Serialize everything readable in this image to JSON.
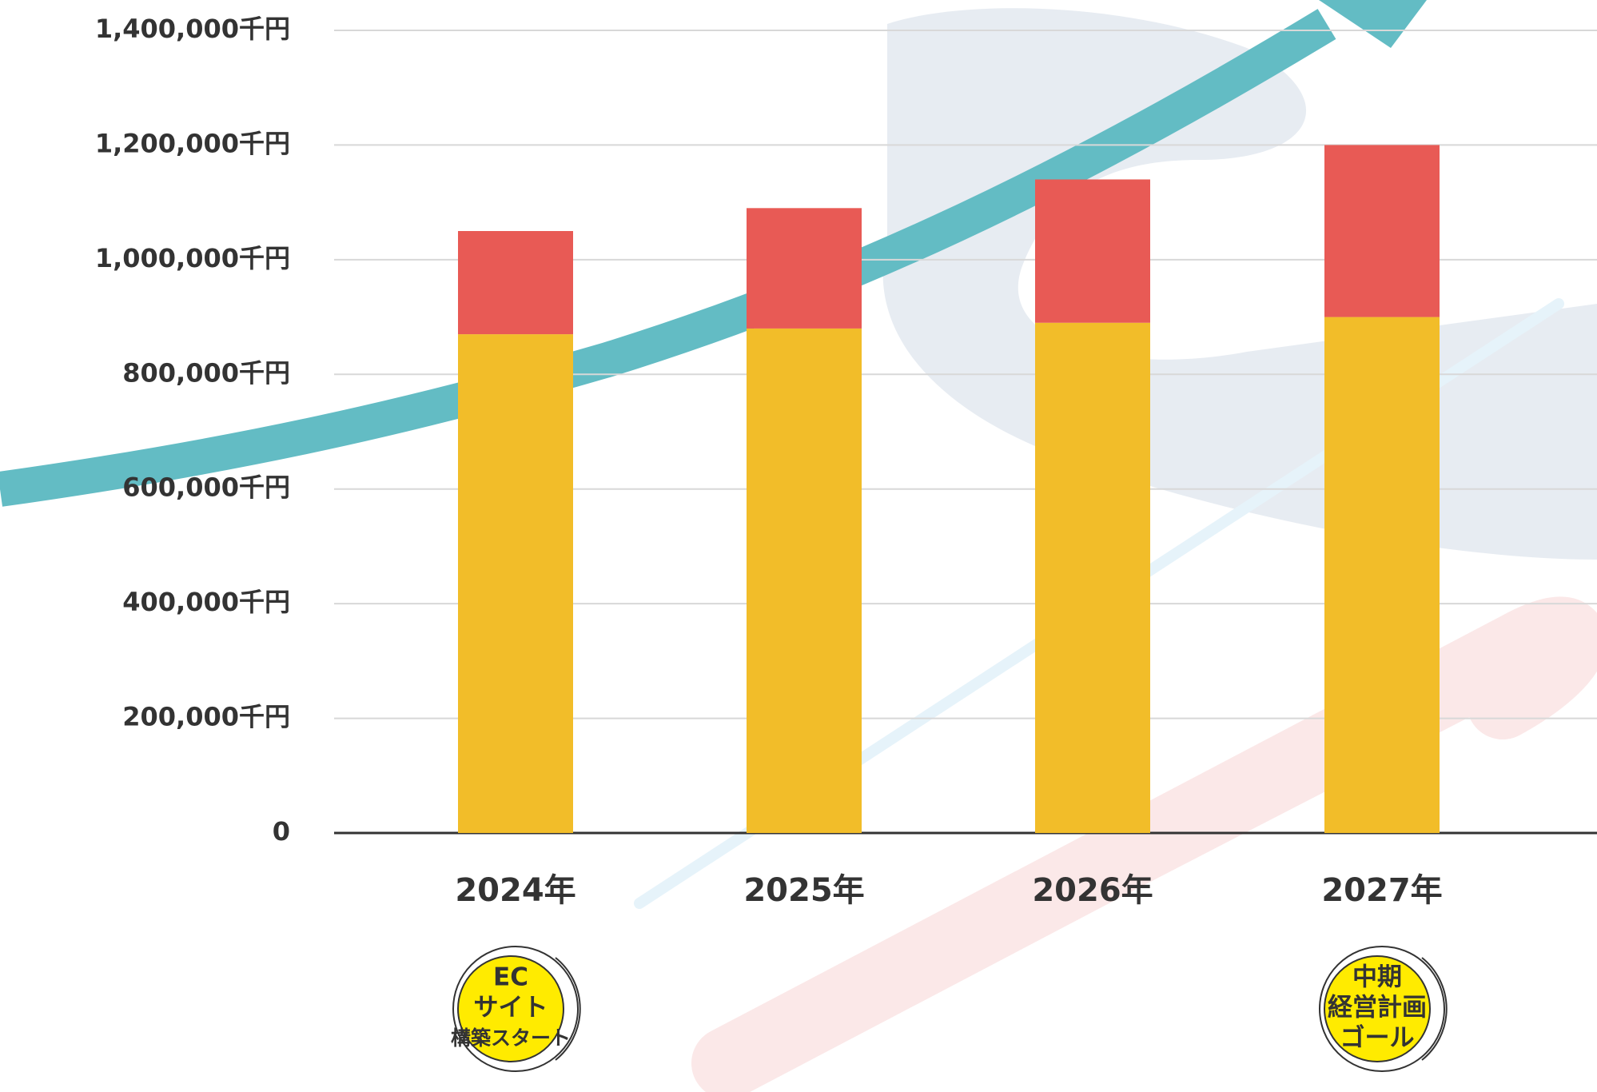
{
  "chart_data": {
    "type": "stacked_bar",
    "categories": [
      "2024年",
      "2025年",
      "2026年",
      "2027年"
    ],
    "series": [
      {
        "color": "#f2bd29",
        "values": [
          870000,
          880000,
          890000,
          900000
        ]
      },
      {
        "color": "#e85a55",
        "values": [
          180000,
          210000,
          250000,
          300000
        ]
      }
    ],
    "ylim": [
      0,
      1400000
    ],
    "yticks": [
      0,
      {
        "value": 200000,
        "label": "200,000千円"
      },
      {
        "value": 400000,
        "label": "400,000千円"
      },
      {
        "value": 600000,
        "label": "600,000千円"
      },
      {
        "value": 800000,
        "label": "800,000千円"
      },
      {
        "value": 1000000,
        "label": "1,000,000千円"
      },
      {
        "value": 1200000,
        "label": "1,200,000千円"
      },
      {
        "value": 1400000,
        "label": "1,400,000千円"
      }
    ],
    "grid": true,
    "annotations": [
      {
        "lines": [
          "EC",
          "サイト",
          "構築スタート"
        ]
      },
      {
        "lines": [
          "中期",
          "経営計画",
          "ゴール"
        ]
      }
    ]
  }
}
